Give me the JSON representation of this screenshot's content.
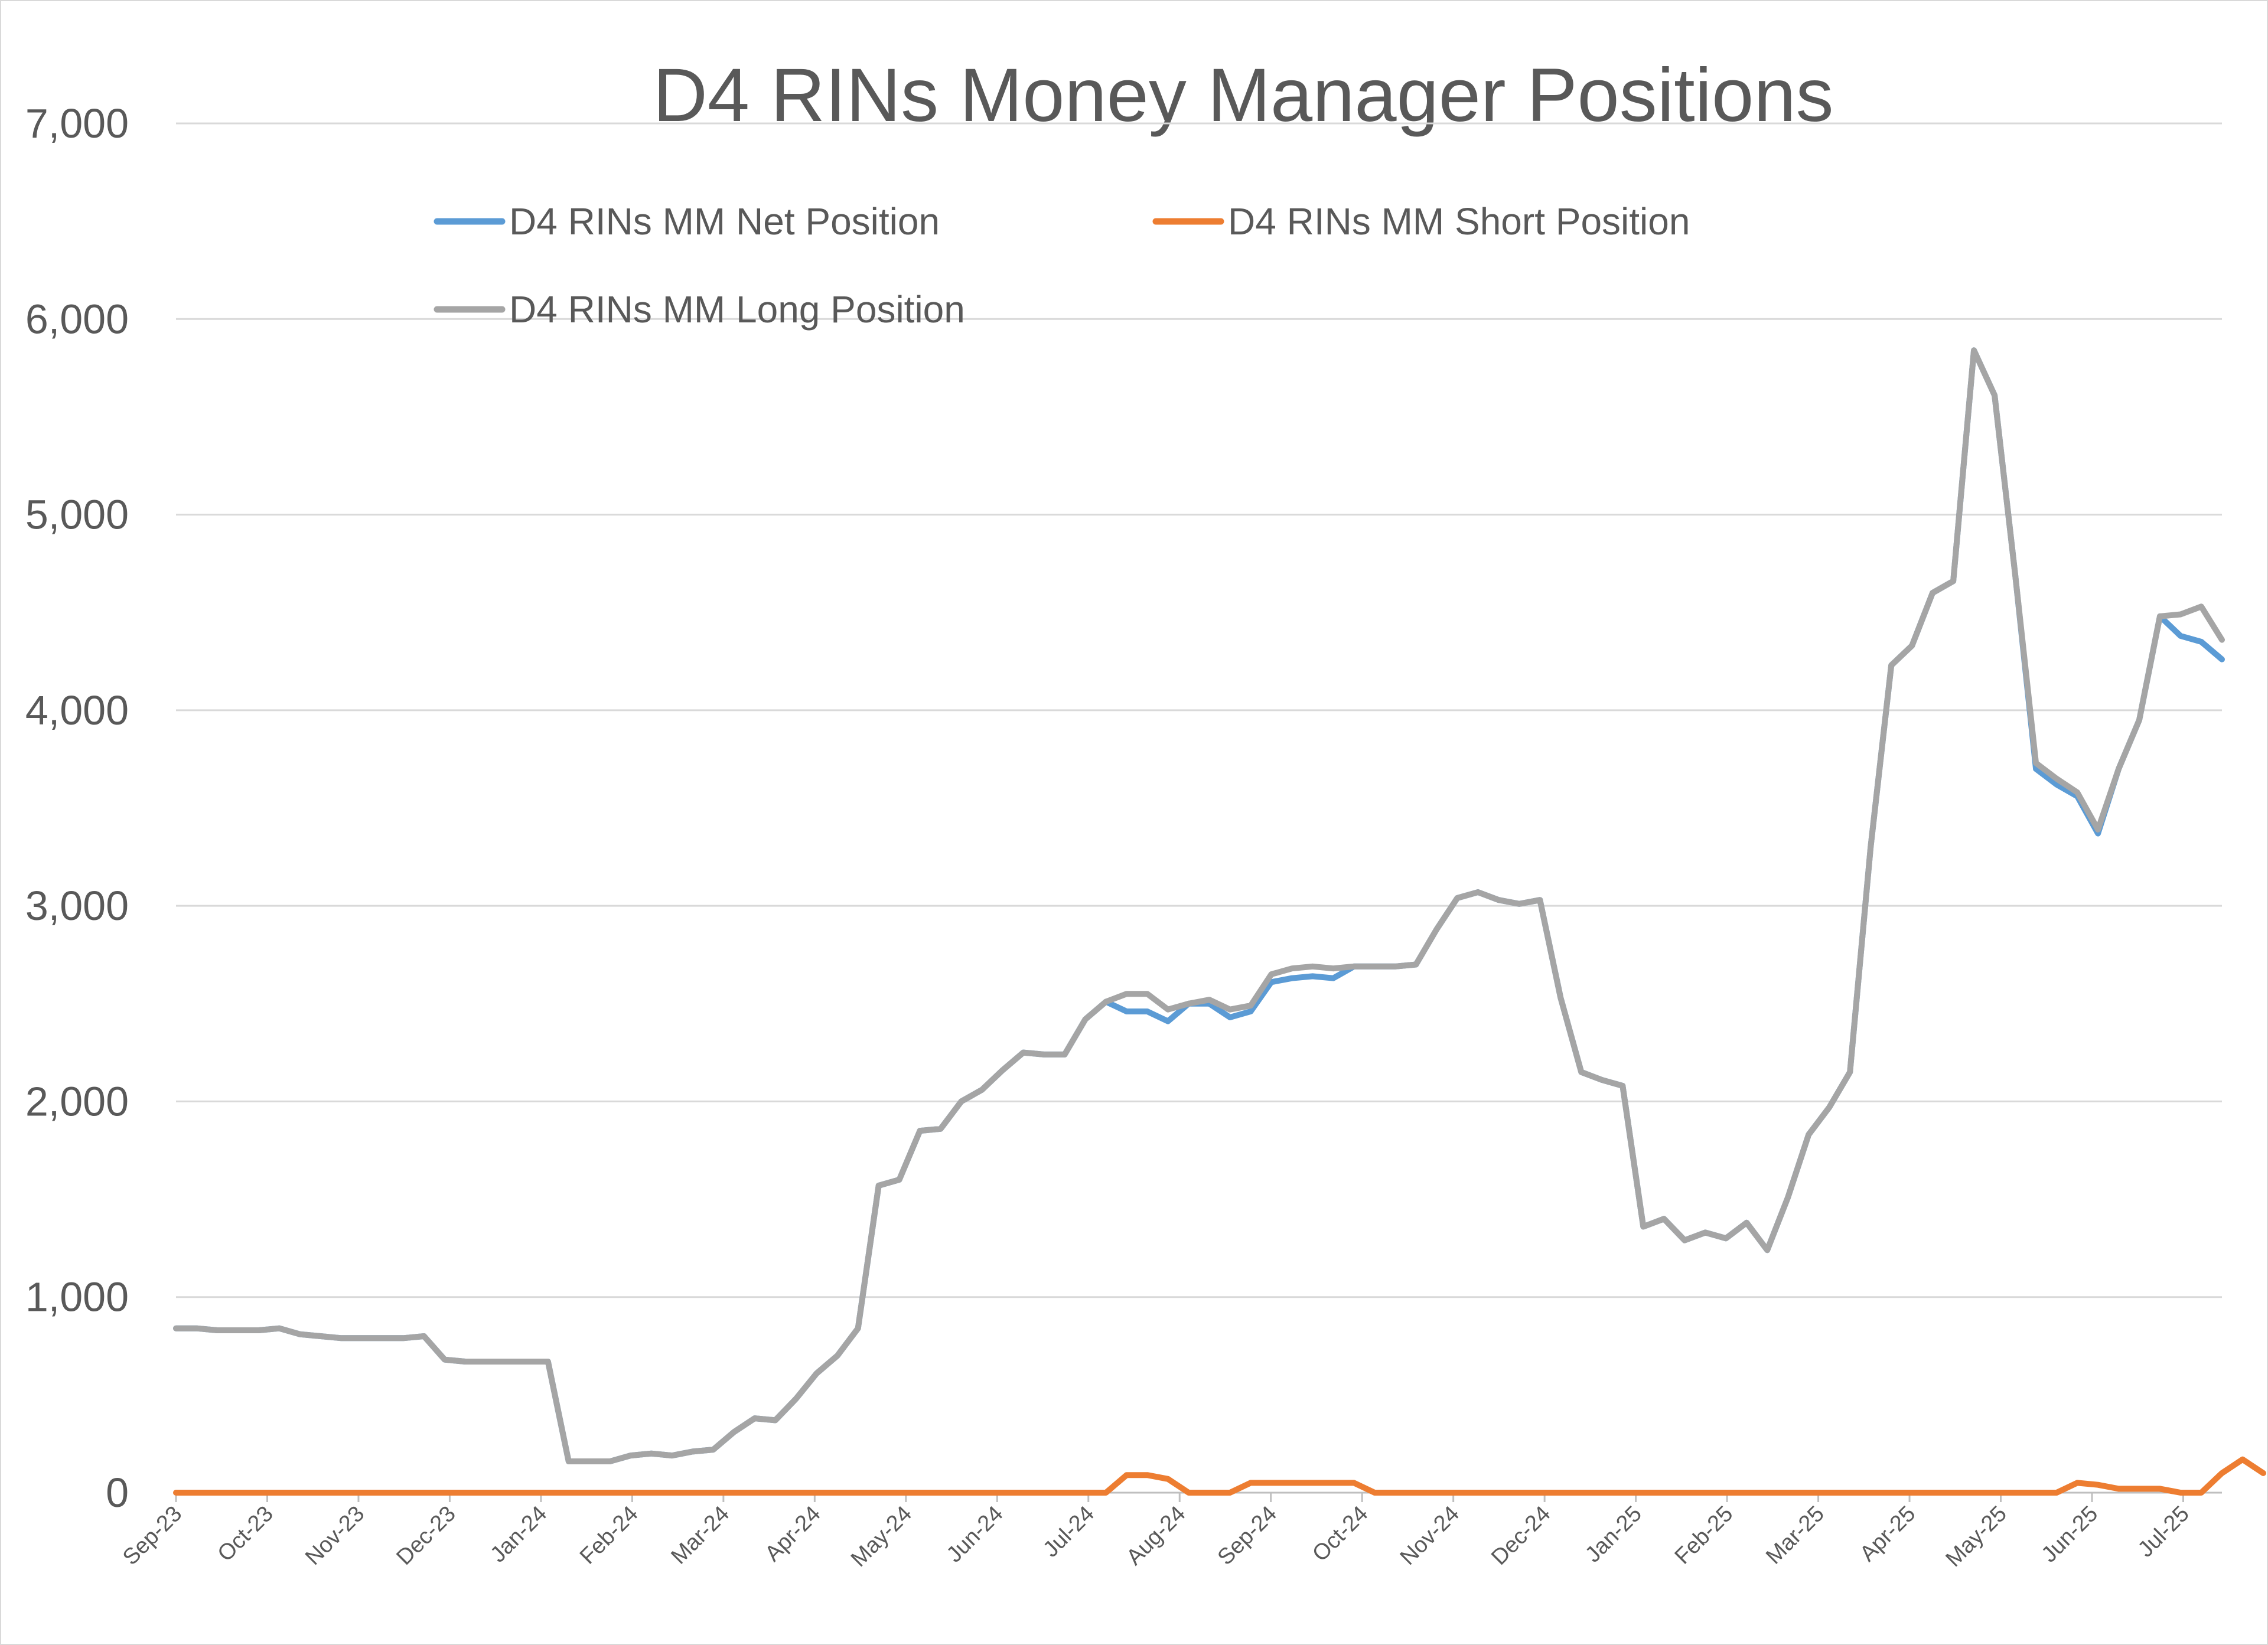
{
  "chart_data": {
    "type": "line",
    "title": "D4 RINs Money Manager Positions",
    "xlabel": "",
    "ylabel": "",
    "ylim": [
      0,
      7000
    ],
    "yticks": [
      0,
      1000,
      2000,
      3000,
      4000,
      5000,
      6000,
      7000
    ],
    "ytick_labels": [
      "0",
      "1,000",
      "2,000",
      "3,000",
      "4,000",
      "5,000",
      "6,000",
      "7,000"
    ],
    "xtick_labels": [
      "Sep-23",
      "Oct-23",
      "Nov-23",
      "Dec-23",
      "Jan-24",
      "Feb-24",
      "Mar-24",
      "Apr-24",
      "May-24",
      "Jun-24",
      "Jul-24",
      "Aug-24",
      "Sep-24",
      "Oct-24",
      "Nov-24",
      "Dec-24",
      "Jan-25",
      "Feb-25",
      "Mar-25",
      "Apr-25",
      "May-25",
      "Jun-25",
      "Jul-25"
    ],
    "grid": true,
    "legend_position": "top",
    "series": [
      {
        "name": "D4 RINs MM Net Position",
        "color": "#5b9bd5",
        "values": [
          840,
          840,
          830,
          830,
          830,
          840,
          810,
          800,
          790,
          790,
          790,
          790,
          800,
          680,
          670,
          670,
          670,
          670,
          670,
          160,
          160,
          160,
          190,
          200,
          190,
          210,
          220,
          310,
          380,
          370,
          480,
          610,
          700,
          840,
          1570,
          1600,
          1850,
          1860,
          2000,
          2060,
          2160,
          2250,
          2240,
          2240,
          2420,
          2510,
          2460,
          2460,
          2410,
          2500,
          2500,
          2430,
          2460,
          2610,
          2630,
          2640,
          2630,
          2690,
          2690,
          2690,
          2700,
          2880,
          3040,
          3070,
          3030,
          3010,
          3030,
          2530,
          2150,
          2110,
          2080,
          1360,
          1400,
          1290,
          1330,
          1300,
          1380,
          1240,
          1510,
          1830,
          1970,
          2150,
          3300,
          4230,
          4330,
          4600,
          4660,
          5840,
          5610,
          4690,
          3700,
          3620,
          3560,
          3370,
          3700,
          3950,
          4480,
          4380,
          4350,
          4260
        ]
      },
      {
        "name": "D4 RINs MM Short Position",
        "color": "#ed7d31",
        "values": [
          0,
          0,
          0,
          0,
          0,
          0,
          0,
          0,
          0,
          0,
          0,
          0,
          0,
          0,
          0,
          0,
          0,
          0,
          0,
          0,
          0,
          0,
          0,
          0,
          0,
          0,
          0,
          0,
          0,
          0,
          0,
          0,
          0,
          0,
          0,
          0,
          0,
          0,
          0,
          0,
          0,
          0,
          0,
          0,
          0,
          0,
          90,
          90,
          70,
          0,
          0,
          0,
          50,
          50,
          50,
          50,
          50,
          50,
          0,
          0,
          0,
          0,
          0,
          0,
          0,
          0,
          0,
          0,
          0,
          0,
          0,
          0,
          0,
          0,
          0,
          0,
          0,
          0,
          0,
          0,
          0,
          0,
          0,
          0,
          0,
          0,
          0,
          0,
          0,
          0,
          0,
          0,
          50,
          40,
          20,
          20,
          20,
          0,
          0,
          100,
          170,
          100
        ]
      },
      {
        "name": "D4 RINs MM Long Position",
        "color": "#a5a5a5",
        "values": [
          840,
          840,
          830,
          830,
          830,
          840,
          810,
          800,
          790,
          790,
          790,
          790,
          800,
          680,
          670,
          670,
          670,
          670,
          670,
          160,
          160,
          160,
          190,
          200,
          190,
          210,
          220,
          310,
          380,
          370,
          480,
          610,
          700,
          840,
          1570,
          1600,
          1850,
          1860,
          2000,
          2060,
          2160,
          2250,
          2240,
          2240,
          2420,
          2510,
          2550,
          2550,
          2470,
          2500,
          2520,
          2470,
          2490,
          2650,
          2680,
          2690,
          2680,
          2690,
          2690,
          2690,
          2700,
          2880,
          3040,
          3070,
          3030,
          3010,
          3030,
          2530,
          2150,
          2110,
          2080,
          1360,
          1400,
          1290,
          1330,
          1300,
          1380,
          1240,
          1510,
          1830,
          1970,
          2150,
          3300,
          4230,
          4330,
          4600,
          4660,
          5840,
          5610,
          4690,
          3730,
          3650,
          3580,
          3390,
          3700,
          3950,
          4480,
          4490,
          4530,
          4360
        ]
      }
    ]
  }
}
